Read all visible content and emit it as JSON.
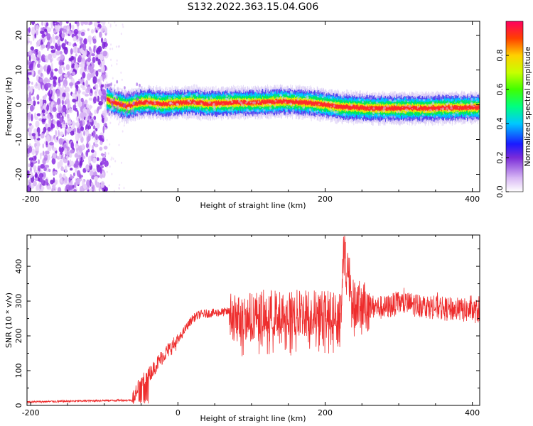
{
  "title": "S132.2022.363.15.04.G06",
  "chart_data": [
    {
      "type": "heatmap",
      "xlabel": "Height of straight line (km)",
      "ylabel": "Frequency (Hz)",
      "xlim": [
        -205,
        410
      ],
      "ylim": [
        -25,
        24
      ],
      "xticks": [
        -200,
        0,
        200,
        400
      ],
      "yticks": [
        -20,
        -10,
        0,
        10,
        20
      ],
      "colorbar": {
        "label": "Normalized spectral amplitude",
        "ticks": [
          0.0,
          0.2,
          0.4,
          0.6,
          0.8
        ],
        "range": [
          0,
          1
        ]
      },
      "noise_region": [
        -205,
        -97
      ],
      "signal_start": -97,
      "frequency_trace": {
        "x": [
          -97,
          -85,
          -70,
          -55,
          -40,
          -20,
          0,
          20,
          40,
          60,
          80,
          100,
          120,
          140,
          160,
          180,
          200,
          220,
          240,
          260,
          280,
          300,
          320,
          340,
          360,
          380,
          400,
          410
        ],
        "y": [
          1.5,
          0.5,
          -0.5,
          0.5,
          0.8,
          0.2,
          0.5,
          0.8,
          0.3,
          0.5,
          0.6,
          0.6,
          0.7,
          1.0,
          0.8,
          0.5,
          0.0,
          -0.6,
          -0.8,
          -1.0,
          -1.0,
          -1.0,
          -1.0,
          -1.0,
          -0.9,
          -0.8,
          -0.8,
          -0.8
        ]
      }
    },
    {
      "type": "line",
      "xlabel": "Height of straight line (km)",
      "ylabel": "SNR (10 * v/v)",
      "xlim": [
        -205,
        410
      ],
      "ylim": [
        0,
        490
      ],
      "xticks": [
        -200,
        0,
        200,
        400
      ],
      "yticks": [
        0,
        100,
        200,
        300,
        400
      ],
      "color": "#ee2d2d",
      "series": [
        {
          "x": [
            -205,
            -150,
            -100,
            -62,
            -55,
            -45,
            -35,
            -25,
            -15,
            -5,
            0,
            10,
            20,
            30,
            45,
            60,
            70,
            75,
            90,
            110,
            130,
            150,
            170,
            190,
            210,
            222,
            225,
            240,
            260,
            280,
            300,
            320,
            340,
            360,
            380,
            410
          ],
          "y": [
            10,
            12,
            14,
            15,
            55,
            75,
            100,
            130,
            155,
            175,
            185,
            220,
            250,
            262,
            265,
            268,
            270,
            250,
            255,
            262,
            265,
            258,
            268,
            265,
            262,
            270,
            485,
            290,
            285,
            280,
            295,
            290,
            285,
            278,
            275,
            270
          ]
        }
      ],
      "peak": {
        "x": 225,
        "y": 485
      }
    }
  ]
}
